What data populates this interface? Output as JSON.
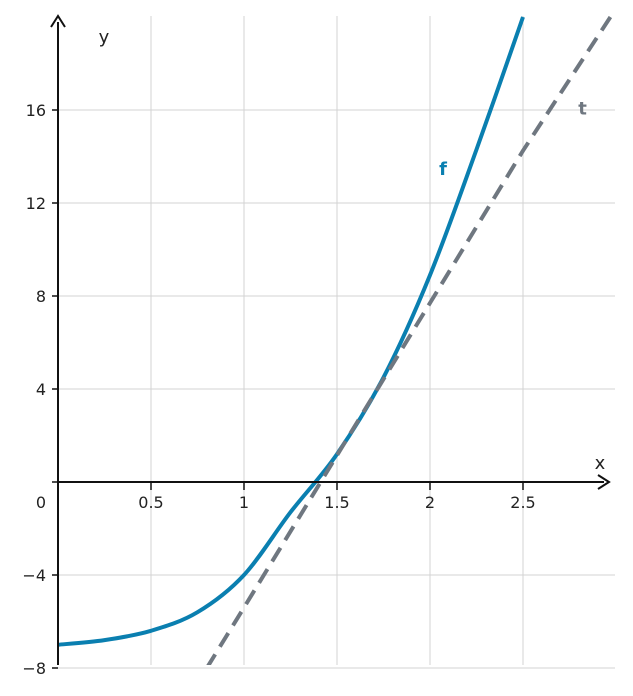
{
  "chart_data": {
    "type": "line",
    "xlabel": "x",
    "ylabel": "y",
    "xlim": [
      0,
      3
    ],
    "ylim": [
      -8,
      20
    ],
    "x_ticks": [
      0.5,
      1,
      1.5,
      2,
      2.5
    ],
    "x_tick_labels": [
      "0.5",
      "1",
      "1.5",
      "2",
      "2.5"
    ],
    "y_ticks": [
      -8,
      -4,
      0,
      4,
      8,
      12,
      16
    ],
    "y_tick_labels": [
      "−8",
      "−4",
      "0",
      "4",
      "8",
      "12",
      "16"
    ],
    "grid": true,
    "series": [
      {
        "name": "f",
        "color": "#0a7fb0",
        "style": "solid",
        "x": [
          0,
          0.25,
          0.5,
          0.75,
          1,
          1.25,
          1.5,
          1.75,
          2,
          2.25,
          2.5
        ],
        "y": [
          -7,
          -6.8,
          -6.4,
          -5.6,
          -4,
          -1.3,
          1.2,
          4.5,
          8.9,
          14.3,
          20
        ]
      },
      {
        "name": "t",
        "color": "#6f7780",
        "style": "dashed",
        "x": [
          0.8,
          1,
          1.5,
          2,
          2.5,
          2.97
        ],
        "y": [
          -8,
          -5.4,
          1.15,
          7.7,
          14.25,
          20
        ]
      }
    ]
  }
}
